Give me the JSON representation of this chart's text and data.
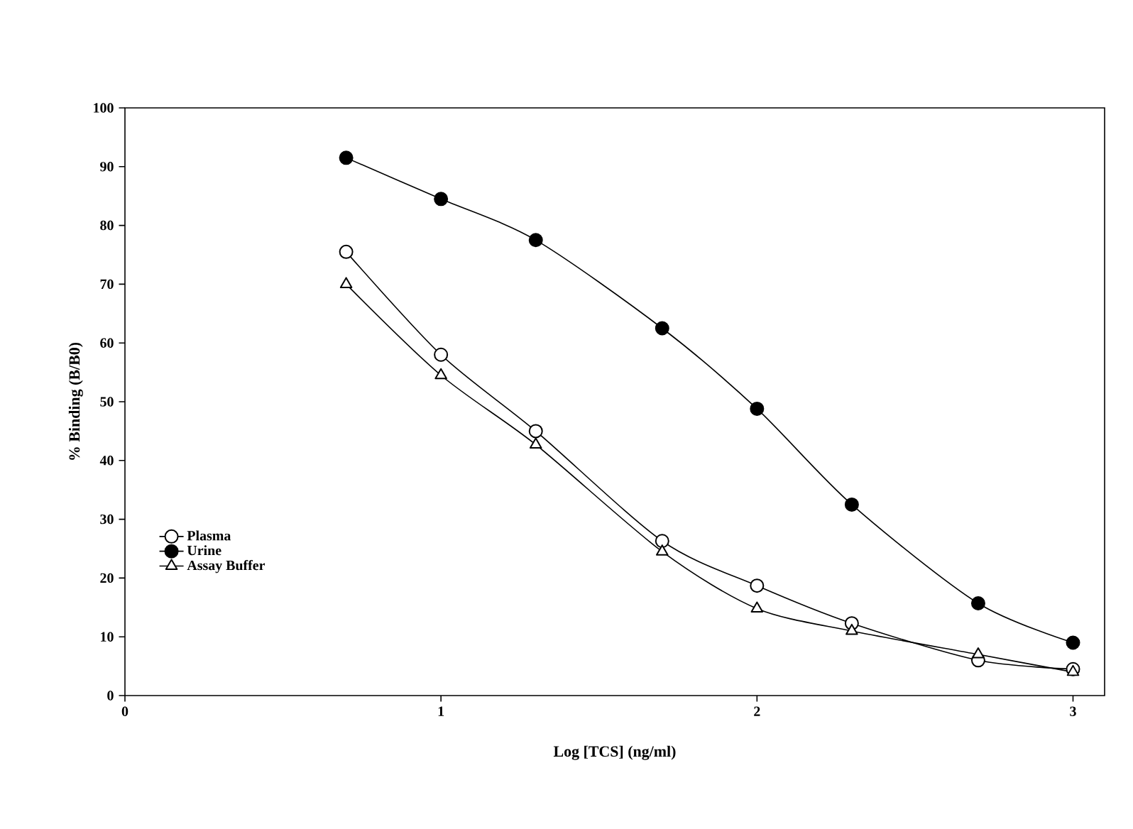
{
  "chart_data": {
    "type": "line",
    "xlabel": "Log [TCS] (ng/ml)",
    "ylabel": "% Binding (B/B0)",
    "xlim": [
      0,
      3.1
    ],
    "xticks": [
      0,
      1,
      2,
      3
    ],
    "ylim": [
      0,
      100
    ],
    "yticks": [
      0,
      10,
      20,
      30,
      40,
      50,
      60,
      70,
      80,
      90,
      100
    ],
    "x": [
      0.7,
      1,
      1.3,
      1.7,
      2,
      2.3,
      2.7,
      3
    ],
    "series": [
      {
        "name": "Plasma",
        "color": "#ffffff",
        "marker": "circle",
        "values": [
          75.5,
          58,
          45,
          26.3,
          18.7,
          12.3,
          6,
          4.5
        ]
      },
      {
        "name": "Urine",
        "color": "#000000",
        "marker": "circle",
        "values": [
          91.5,
          84.5,
          77.5,
          62.5,
          48.8,
          32.5,
          15.7,
          9
        ]
      },
      {
        "name": "Assay Buffer",
        "color": "#ffffff",
        "marker": "triangle",
        "values": [
          70,
          54.5,
          42.7,
          24.5,
          14.8,
          11,
          7,
          4
        ]
      }
    ],
    "legend": "bottom left",
    "grid": false,
    "line_style": "solid"
  }
}
